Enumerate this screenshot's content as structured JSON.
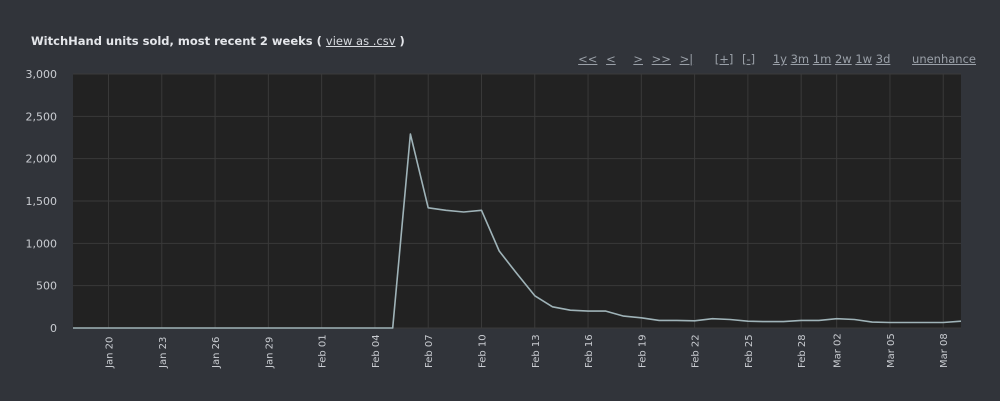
{
  "header": {
    "title": "WitchHand units sold, most recent 2 weeks",
    "paren_open": "(",
    "csv_link": "view as .csv",
    "paren_close": ")"
  },
  "controls": {
    "nav": [
      "<<",
      "<",
      ">",
      ">>",
      ">|"
    ],
    "zoom": [
      "[+]",
      "[-]"
    ],
    "ranges": [
      "1y",
      "3m",
      "1m",
      "2w",
      "1w",
      "3d"
    ],
    "unenhance": "unenhance"
  },
  "colors": {
    "page_background": "#31343a",
    "plot_background": "#222222",
    "line": "#9fb3b8",
    "grid": "#3a3a3a"
  },
  "chart_data": {
    "type": "line",
    "title": "WitchHand units sold, most recent 2 weeks",
    "xlabel": "",
    "ylabel": "",
    "ylim": [
      0,
      3000
    ],
    "yticks": [
      "3,000",
      "2,500",
      "2,000",
      "1,500",
      "1,000",
      "500",
      "0"
    ],
    "ytick_values": [
      3000,
      2500,
      2000,
      1500,
      1000,
      500,
      0
    ],
    "xticks": [
      "Jan 20",
      "Jan 23",
      "Jan 26",
      "Jan 29",
      "Feb 01",
      "Feb 04",
      "Feb 07",
      "Feb 10",
      "Feb 13",
      "Feb 16",
      "Feb 19",
      "Feb 22",
      "Feb 25",
      "Feb 28",
      "Mar 02",
      "Mar 05",
      "Mar 08"
    ],
    "grid": true,
    "series": [
      {
        "dates": [
          "Jan 18",
          "Jan 19",
          "Jan 20",
          "Jan 21",
          "Jan 22",
          "Jan 23",
          "Jan 24",
          "Jan 25",
          "Jan 26",
          "Jan 27",
          "Jan 28",
          "Jan 29",
          "Jan 30",
          "Jan 31",
          "Feb 01",
          "Feb 02",
          "Feb 03",
          "Feb 04",
          "Feb 05",
          "Feb 06",
          "Feb 07",
          "Feb 08",
          "Feb 09",
          "Feb 10",
          "Feb 11",
          "Feb 12",
          "Feb 13",
          "Feb 14",
          "Feb 15",
          "Feb 16",
          "Feb 17",
          "Feb 18",
          "Feb 19",
          "Feb 20",
          "Feb 21",
          "Feb 22",
          "Feb 23",
          "Feb 24",
          "Feb 25",
          "Feb 26",
          "Feb 27",
          "Feb 28",
          "Mar 01",
          "Mar 02",
          "Mar 03",
          "Mar 04",
          "Mar 05",
          "Mar 06",
          "Mar 07",
          "Mar 08",
          "Mar 09"
        ],
        "values": [
          0,
          0,
          0,
          0,
          0,
          0,
          0,
          0,
          0,
          0,
          0,
          0,
          0,
          0,
          0,
          0,
          0,
          0,
          0,
          2290,
          1420,
          1390,
          1370,
          1390,
          910,
          640,
          380,
          250,
          210,
          200,
          200,
          140,
          120,
          90,
          90,
          85,
          110,
          100,
          80,
          75,
          75,
          90,
          90,
          110,
          100,
          70,
          65,
          65,
          65,
          65,
          80
        ]
      }
    ]
  }
}
